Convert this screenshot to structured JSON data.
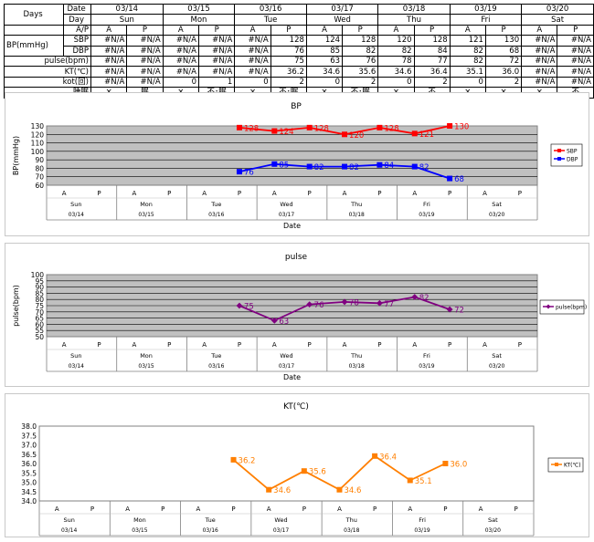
{
  "table": {
    "row_labels": {
      "days": "Days",
      "date": "Date",
      "day": "Day",
      "ap": "A/P",
      "bp": "BP(mmHg)",
      "sbp": "SBP",
      "dbp": "DBP",
      "pulse": "pulse(bpm)",
      "kt": "KT(℃)",
      "kot": "kot(回)",
      "sleep": "睡眠"
    },
    "dates": [
      "03/14",
      "03/15",
      "03/16",
      "03/17",
      "03/18",
      "03/19",
      "03/20"
    ],
    "days": [
      "Sun",
      "Mon",
      "Tue",
      "Wed",
      "Thu",
      "Fri",
      "Sat"
    ],
    "ap": [
      "A",
      "P",
      "A",
      "P",
      "A",
      "P",
      "A",
      "P",
      "A",
      "P",
      "A",
      "P",
      "A",
      "P"
    ],
    "sbp": [
      "#N/A",
      "#N/A",
      "#N/A",
      "#N/A",
      "#N/A",
      "128",
      "124",
      "128",
      "120",
      "128",
      "121",
      "130",
      "#N/A",
      "#N/A"
    ],
    "dbp": [
      "#N/A",
      "#N/A",
      "#N/A",
      "#N/A",
      "#N/A",
      "76",
      "85",
      "82",
      "82",
      "84",
      "82",
      "68",
      "#N/A",
      "#N/A"
    ],
    "pulse": [
      "#N/A",
      "#N/A",
      "#N/A",
      "#N/A",
      "#N/A",
      "75",
      "63",
      "76",
      "78",
      "77",
      "82",
      "72",
      "#N/A",
      "#N/A"
    ],
    "kt": [
      "#N/A",
      "#N/A",
      "#N/A",
      "#N/A",
      "#N/A",
      "36.2",
      "34.6",
      "35.6",
      "34.6",
      "36.4",
      "35.1",
      "36.0",
      "#N/A",
      "#N/A"
    ],
    "kot": [
      "#N/A",
      "#N/A",
      "0",
      "1",
      "0",
      "2",
      "0",
      "2",
      "0",
      "2",
      "0",
      "2",
      "#N/A",
      "#N/A"
    ],
    "sleep": [
      "×",
      "眠",
      "×",
      "不･眠",
      "×",
      "不･眠",
      "×",
      "不･眠",
      "×",
      "不",
      "×",
      "×",
      "×",
      "不"
    ]
  },
  "chart_data": [
    {
      "type": "line",
      "title": "BP",
      "ylabel": "BP(mmHg)",
      "xlabel": "Date",
      "ylim": [
        60,
        130
      ],
      "yticks": [
        60,
        70,
        80,
        90,
        100,
        110,
        120,
        130
      ],
      "categories": [
        "A",
        "P",
        "A",
        "P",
        "A",
        "P",
        "A",
        "P",
        "A",
        "P",
        "A",
        "P",
        "A",
        "P"
      ],
      "days": [
        "Sun",
        "Mon",
        "Tue",
        "Wed",
        "Thu",
        "Fri",
        "Sat"
      ],
      "dates": [
        "03/14",
        "03/15",
        "03/16",
        "03/17",
        "03/18",
        "03/19",
        "03/20"
      ],
      "legend_position": "right",
      "grid": true,
      "series": [
        {
          "name": "SBP",
          "color": "#ff0000",
          "marker": "square",
          "values": [
            null,
            null,
            null,
            null,
            null,
            128,
            124,
            128,
            120,
            128,
            121,
            130,
            null,
            null
          ],
          "labels": [
            "",
            "",
            "",
            "",
            "",
            "128",
            "124",
            "128",
            "120",
            "128",
            "121",
            "130",
            "",
            ""
          ]
        },
        {
          "name": "DBP",
          "color": "#0000ff",
          "marker": "square",
          "values": [
            null,
            null,
            null,
            null,
            null,
            76,
            85,
            82,
            82,
            84,
            82,
            68,
            null,
            null
          ],
          "labels": [
            "",
            "",
            "",
            "",
            "",
            "76",
            "85",
            "82",
            "82",
            "84",
            "82",
            "68",
            "",
            ""
          ]
        }
      ]
    },
    {
      "type": "line",
      "title": "pulse",
      "ylabel": "pulse(bpm)",
      "xlabel": "Date",
      "ylim": [
        50,
        100
      ],
      "yticks": [
        50,
        55,
        60,
        65,
        70,
        75,
        80,
        85,
        90,
        95,
        100
      ],
      "categories": [
        "A",
        "P",
        "A",
        "P",
        "A",
        "P",
        "A",
        "P",
        "A",
        "P",
        "A",
        "P",
        "A",
        "P"
      ],
      "days": [
        "Sun",
        "Mon",
        "Tue",
        "Wed",
        "Thu",
        "Fri",
        "Sat"
      ],
      "dates": [
        "03/14",
        "03/15",
        "03/16",
        "03/17",
        "03/18",
        "03/19",
        "03/20"
      ],
      "legend_position": "right",
      "grid": true,
      "series": [
        {
          "name": "pulse(bpm)",
          "color": "#800080",
          "marker": "diamond",
          "values": [
            null,
            null,
            null,
            null,
            null,
            75,
            63,
            76,
            78,
            77,
            82,
            72,
            null,
            null
          ],
          "labels": [
            "",
            "",
            "",
            "",
            "",
            "75",
            "63",
            "76",
            "78",
            "77",
            "82",
            "72",
            "",
            ""
          ]
        }
      ]
    },
    {
      "type": "line",
      "title": "KT(℃)",
      "ylabel": "",
      "xlabel": "",
      "ylim": [
        34.0,
        38.0
      ],
      "yticks": [
        "34.0",
        "34.5",
        "35.0",
        "35.5",
        "36.0",
        "36.5",
        "37.0",
        "37.5",
        "38.0"
      ],
      "categories": [
        "A",
        "P",
        "A",
        "P",
        "A",
        "P",
        "A",
        "P",
        "A",
        "P",
        "A",
        "P",
        "A",
        "P"
      ],
      "days": [
        "Sun",
        "Mon",
        "Tue",
        "Wed",
        "Thu",
        "Fri",
        "Sat"
      ],
      "dates": [
        "03/14",
        "03/15",
        "03/16",
        "03/17",
        "03/18",
        "03/19",
        "03/20"
      ],
      "legend_position": "right",
      "grid": false,
      "series": [
        {
          "name": "KT(℃)",
          "color": "#ff7f00",
          "marker": "square",
          "values": [
            null,
            null,
            null,
            null,
            null,
            36.2,
            34.6,
            35.6,
            34.6,
            36.4,
            35.1,
            36.0,
            null,
            null
          ],
          "labels": [
            "",
            "",
            "",
            "",
            "",
            "36.2",
            "34.6",
            "35.6",
            "34.6",
            "36.4",
            "35.1",
            "36.0",
            "",
            ""
          ]
        }
      ]
    }
  ]
}
